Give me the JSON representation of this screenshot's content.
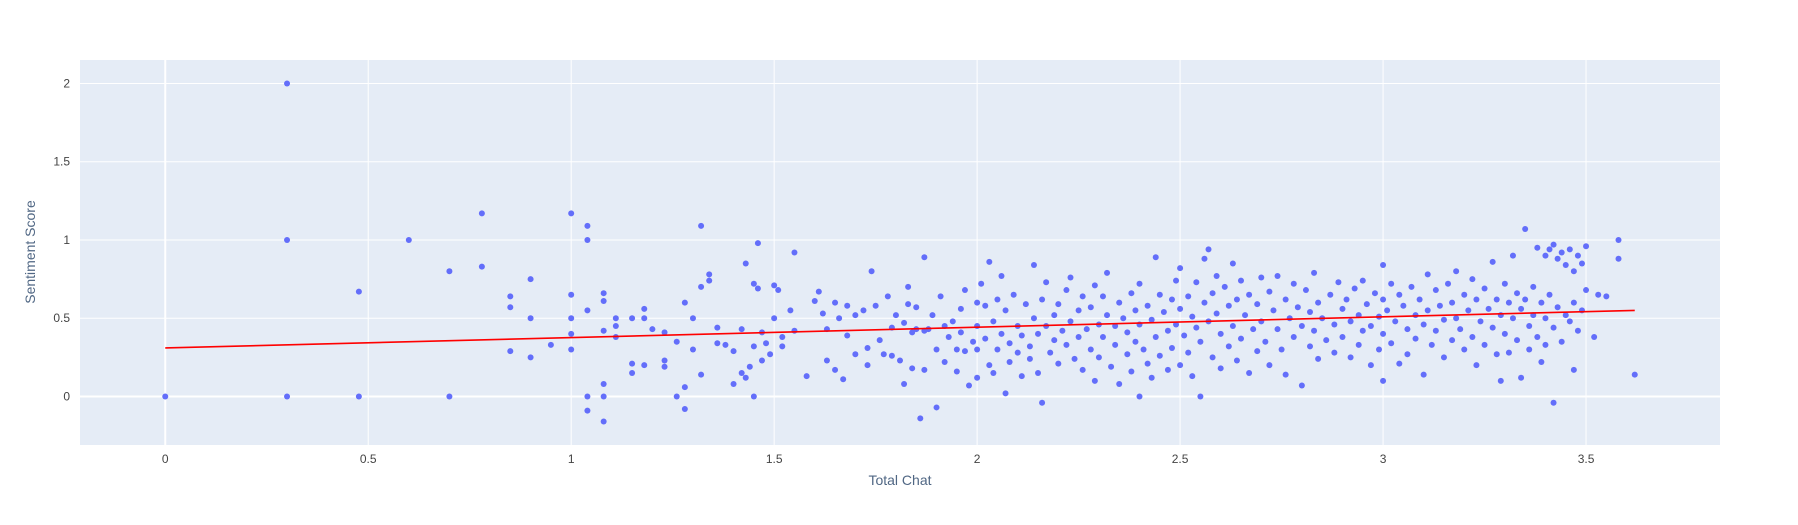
{
  "chart_data": {
    "type": "scatter",
    "xlabel": "Total Chat",
    "ylabel": "Sentiment Score",
    "xlim": [
      -0.21,
      3.83
    ],
    "ylim": [
      -0.31,
      2.15
    ],
    "x_ticks": [
      0,
      0.5,
      1,
      1.5,
      2,
      2.5,
      3,
      3.5
    ],
    "x_tick_labels": [
      "0",
      "0.5",
      "1",
      "1.5",
      "2",
      "2.5",
      "3",
      "3.5"
    ],
    "y_ticks": [
      0,
      0.5,
      1,
      1.5,
      2
    ],
    "y_tick_labels": [
      "0",
      "0.5",
      "1",
      "1.5",
      "2"
    ],
    "grid": true,
    "legend": "none",
    "colors": {
      "points": "#636efa",
      "trendline": "#ff0000",
      "plot_bg": "#e5ecf6",
      "grid": "#ffffff"
    },
    "trendline": {
      "x": [
        0,
        3.62
      ],
      "y": [
        0.31,
        0.55
      ]
    },
    "points": [
      [
        0,
        0
      ],
      [
        0.3,
        2.0
      ],
      [
        0.3,
        1.0
      ],
      [
        0.3,
        0
      ],
      [
        0.477,
        0.67
      ],
      [
        0.477,
        0
      ],
      [
        0.6,
        1.0
      ],
      [
        0.7,
        0.8
      ],
      [
        0.7,
        0
      ],
      [
        0.78,
        1.17
      ],
      [
        0.78,
        0.83
      ],
      [
        0.85,
        0.64
      ],
      [
        0.85,
        0.57
      ],
      [
        0.85,
        0.29
      ],
      [
        0.9,
        0.75
      ],
      [
        0.9,
        0.5
      ],
      [
        0.9,
        0.25
      ],
      [
        0.95,
        0.33
      ],
      [
        1.0,
        1.17
      ],
      [
        1.0,
        0.65
      ],
      [
        1.0,
        0.5
      ],
      [
        1.0,
        0.4
      ],
      [
        1.0,
        0.3
      ],
      [
        1.04,
        1.09
      ],
      [
        1.04,
        1.0
      ],
      [
        1.04,
        0.55
      ],
      [
        1.04,
        0
      ],
      [
        1.04,
        -0.09
      ],
      [
        1.08,
        0.66
      ],
      [
        1.08,
        0.61
      ],
      [
        1.08,
        0.42
      ],
      [
        1.08,
        0.08
      ],
      [
        1.08,
        0
      ],
      [
        1.08,
        -0.16
      ],
      [
        1.11,
        0.5
      ],
      [
        1.11,
        0.45
      ],
      [
        1.11,
        0.38
      ],
      [
        1.15,
        0.5
      ],
      [
        1.15,
        0.21
      ],
      [
        1.15,
        0.15
      ],
      [
        1.18,
        0.56
      ],
      [
        1.18,
        0.5
      ],
      [
        1.18,
        0.2
      ],
      [
        1.2,
        0.43
      ],
      [
        1.23,
        0.41
      ],
      [
        1.23,
        0.23
      ],
      [
        1.23,
        0.19
      ],
      [
        1.26,
        0.35
      ],
      [
        1.26,
        0.0
      ],
      [
        1.28,
        0.6
      ],
      [
        1.28,
        0.06
      ],
      [
        1.28,
        -0.08
      ],
      [
        1.3,
        0.5
      ],
      [
        1.3,
        0.3
      ],
      [
        1.32,
        1.09
      ],
      [
        1.32,
        0.7
      ],
      [
        1.32,
        0.14
      ],
      [
        1.34,
        0.78
      ],
      [
        1.34,
        0.74
      ],
      [
        1.36,
        0.44
      ],
      [
        1.36,
        0.34
      ],
      [
        1.38,
        0.33
      ],
      [
        1.4,
        0.29
      ],
      [
        1.4,
        0.08
      ],
      [
        1.42,
        0.43
      ],
      [
        1.42,
        0.15
      ],
      [
        1.43,
        0.85
      ],
      [
        1.43,
        0.12
      ],
      [
        1.44,
        0.19
      ],
      [
        1.45,
        0.72
      ],
      [
        1.45,
        0.32
      ],
      [
        1.45,
        0.0
      ],
      [
        1.46,
        0.98
      ],
      [
        1.46,
        0.69
      ],
      [
        1.47,
        0.41
      ],
      [
        1.47,
        0.23
      ],
      [
        1.48,
        0.34
      ],
      [
        1.49,
        0.27
      ],
      [
        1.5,
        0.71
      ],
      [
        1.5,
        0.5
      ],
      [
        1.51,
        0.68
      ],
      [
        1.52,
        0.38
      ],
      [
        1.52,
        0.32
      ],
      [
        1.54,
        0.55
      ],
      [
        1.55,
        0.92
      ],
      [
        1.55,
        0.42
      ],
      [
        1.58,
        0.13
      ],
      [
        1.6,
        0.61
      ],
      [
        1.61,
        0.67
      ],
      [
        1.62,
        0.53
      ],
      [
        1.63,
        0.43
      ],
      [
        1.63,
        0.23
      ],
      [
        1.65,
        0.6
      ],
      [
        1.65,
        0.17
      ],
      [
        1.66,
        0.5
      ],
      [
        1.67,
        0.11
      ],
      [
        1.68,
        0.58
      ],
      [
        1.68,
        0.39
      ],
      [
        1.7,
        0.52
      ],
      [
        1.7,
        0.27
      ],
      [
        1.72,
        0.55
      ],
      [
        1.73,
        0.31
      ],
      [
        1.73,
        0.2
      ],
      [
        1.74,
        0.8
      ],
      [
        1.75,
        0.58
      ],
      [
        1.76,
        0.36
      ],
      [
        1.77,
        0.27
      ],
      [
        1.78,
        0.64
      ],
      [
        1.79,
        0.44
      ],
      [
        1.79,
        0.26
      ],
      [
        1.8,
        0.52
      ],
      [
        1.81,
        0.23
      ],
      [
        1.82,
        0.47
      ],
      [
        1.82,
        0.08
      ],
      [
        1.83,
        0.7
      ],
      [
        1.83,
        0.59
      ],
      [
        1.84,
        0.41
      ],
      [
        1.84,
        0.18
      ],
      [
        1.85,
        0.57
      ],
      [
        1.85,
        0.43
      ],
      [
        1.86,
        -0.14
      ],
      [
        1.87,
        0.89
      ],
      [
        1.87,
        0.42
      ],
      [
        1.87,
        0.17
      ],
      [
        1.88,
        0.43
      ],
      [
        1.89,
        0.52
      ],
      [
        1.9,
        0.3
      ],
      [
        1.9,
        -0.07
      ],
      [
        1.91,
        0.64
      ],
      [
        1.92,
        0.45
      ],
      [
        1.92,
        0.22
      ],
      [
        1.93,
        0.38
      ],
      [
        1.94,
        0.48
      ],
      [
        1.95,
        0.3
      ],
      [
        1.95,
        0.16
      ],
      [
        1.96,
        0.56
      ],
      [
        1.96,
        0.41
      ],
      [
        1.97,
        0.68
      ],
      [
        1.97,
        0.29
      ],
      [
        1.98,
        0.07
      ],
      [
        1.99,
        0.35
      ],
      [
        2.0,
        0.6
      ],
      [
        2.0,
        0.45
      ],
      [
        2.0,
        0.3
      ],
      [
        2.0,
        0.12
      ],
      [
        2.01,
        0.72
      ],
      [
        2.02,
        0.58
      ],
      [
        2.02,
        0.37
      ],
      [
        2.03,
        0.86
      ],
      [
        2.03,
        0.2
      ],
      [
        2.04,
        0.48
      ],
      [
        2.04,
        0.15
      ],
      [
        2.05,
        0.62
      ],
      [
        2.05,
        0.3
      ],
      [
        2.06,
        0.77
      ],
      [
        2.06,
        0.4
      ],
      [
        2.07,
        0.55
      ],
      [
        2.07,
        0.02
      ],
      [
        2.08,
        0.34
      ],
      [
        2.08,
        0.22
      ],
      [
        2.09,
        0.65
      ],
      [
        2.1,
        0.45
      ],
      [
        2.1,
        0.28
      ],
      [
        2.11,
        0.39
      ],
      [
        2.11,
        0.13
      ],
      [
        2.12,
        0.59
      ],
      [
        2.13,
        0.32
      ],
      [
        2.13,
        0.24
      ],
      [
        2.14,
        0.5
      ],
      [
        2.14,
        0.84
      ],
      [
        2.15,
        0.4
      ],
      [
        2.15,
        0.15
      ],
      [
        2.16,
        0.62
      ],
      [
        2.16,
        -0.04
      ],
      [
        2.17,
        0.73
      ],
      [
        2.17,
        0.45
      ],
      [
        2.18,
        0.28
      ],
      [
        2.19,
        0.52
      ],
      [
        2.19,
        0.36
      ],
      [
        2.2,
        0.59
      ],
      [
        2.2,
        0.21
      ],
      [
        2.21,
        0.42
      ],
      [
        2.22,
        0.68
      ],
      [
        2.22,
        0.33
      ],
      [
        2.23,
        0.76
      ],
      [
        2.23,
        0.48
      ],
      [
        2.24,
        0.24
      ],
      [
        2.25,
        0.55
      ],
      [
        2.25,
        0.38
      ],
      [
        2.26,
        0.64
      ],
      [
        2.26,
        0.17
      ],
      [
        2.27,
        0.43
      ],
      [
        2.28,
        0.57
      ],
      [
        2.28,
        0.3
      ],
      [
        2.29,
        0.71
      ],
      [
        2.29,
        0.1
      ],
      [
        2.3,
        0.46
      ],
      [
        2.3,
        0.25
      ],
      [
        2.31,
        0.64
      ],
      [
        2.31,
        0.38
      ],
      [
        2.32,
        0.79
      ],
      [
        2.32,
        0.52
      ],
      [
        2.33,
        0.19
      ],
      [
        2.34,
        0.45
      ],
      [
        2.34,
        0.33
      ],
      [
        2.35,
        0.6
      ],
      [
        2.35,
        0.08
      ],
      [
        2.36,
        0.5
      ],
      [
        2.37,
        0.41
      ],
      [
        2.37,
        0.27
      ],
      [
        2.38,
        0.66
      ],
      [
        2.38,
        0.16
      ],
      [
        2.39,
        0.55
      ],
      [
        2.39,
        0.35
      ],
      [
        2.4,
        0.72
      ],
      [
        2.4,
        0.46
      ],
      [
        2.4,
        0.0
      ],
      [
        2.41,
        0.3
      ],
      [
        2.42,
        0.58
      ],
      [
        2.42,
        0.21
      ],
      [
        2.43,
        0.49
      ],
      [
        2.43,
        0.12
      ],
      [
        2.44,
        0.89
      ],
      [
        2.44,
        0.38
      ],
      [
        2.45,
        0.65
      ],
      [
        2.45,
        0.26
      ],
      [
        2.46,
        0.54
      ],
      [
        2.47,
        0.42
      ],
      [
        2.47,
        0.17
      ],
      [
        2.48,
        0.62
      ],
      [
        2.48,
        0.31
      ],
      [
        2.49,
        0.74
      ],
      [
        2.49,
        0.46
      ],
      [
        2.5,
        0.82
      ],
      [
        2.5,
        0.56
      ],
      [
        2.5,
        0.2
      ],
      [
        2.51,
        0.39
      ],
      [
        2.52,
        0.64
      ],
      [
        2.52,
        0.28
      ],
      [
        2.53,
        0.51
      ],
      [
        2.53,
        0.13
      ],
      [
        2.54,
        0.73
      ],
      [
        2.54,
        0.44
      ],
      [
        2.55,
        0.35
      ],
      [
        2.55,
        0.0
      ],
      [
        2.56,
        0.6
      ],
      [
        2.56,
        0.88
      ],
      [
        2.57,
        0.94
      ],
      [
        2.57,
        0.48
      ],
      [
        2.58,
        0.66
      ],
      [
        2.58,
        0.25
      ],
      [
        2.59,
        0.77
      ],
      [
        2.59,
        0.53
      ],
      [
        2.6,
        0.4
      ],
      [
        2.6,
        0.18
      ],
      [
        2.61,
        0.7
      ],
      [
        2.62,
        0.58
      ],
      [
        2.62,
        0.32
      ],
      [
        2.63,
        0.85
      ],
      [
        2.63,
        0.45
      ],
      [
        2.64,
        0.62
      ],
      [
        2.64,
        0.23
      ],
      [
        2.65,
        0.74
      ],
      [
        2.65,
        0.37
      ],
      [
        2.66,
        0.52
      ],
      [
        2.67,
        0.65
      ],
      [
        2.67,
        0.15
      ],
      [
        2.68,
        0.43
      ],
      [
        2.69,
        0.59
      ],
      [
        2.69,
        0.29
      ],
      [
        2.7,
        0.76
      ],
      [
        2.7,
        0.48
      ],
      [
        2.71,
        0.35
      ],
      [
        2.72,
        0.67
      ],
      [
        2.72,
        0.2
      ],
      [
        2.73,
        0.55
      ],
      [
        2.74,
        0.43
      ],
      [
        2.74,
        0.77
      ],
      [
        2.75,
        0.3
      ],
      [
        2.76,
        0.62
      ],
      [
        2.76,
        0.14
      ],
      [
        2.77,
        0.5
      ],
      [
        2.78,
        0.72
      ],
      [
        2.78,
        0.38
      ],
      [
        2.79,
        0.57
      ],
      [
        2.8,
        0.45
      ],
      [
        2.8,
        0.07
      ],
      [
        2.81,
        0.68
      ],
      [
        2.82,
        0.32
      ],
      [
        2.82,
        0.54
      ],
      [
        2.83,
        0.79
      ],
      [
        2.83,
        0.42
      ],
      [
        2.84,
        0.6
      ],
      [
        2.84,
        0.24
      ],
      [
        2.85,
        0.5
      ],
      [
        2.86,
        0.36
      ],
      [
        2.87,
        0.65
      ],
      [
        2.88,
        0.46
      ],
      [
        2.88,
        0.28
      ],
      [
        2.89,
        0.73
      ],
      [
        2.9,
        0.56
      ],
      [
        2.9,
        0.38
      ],
      [
        2.91,
        0.62
      ],
      [
        2.92,
        0.48
      ],
      [
        2.92,
        0.25
      ],
      [
        2.93,
        0.69
      ],
      [
        2.94,
        0.52
      ],
      [
        2.94,
        0.33
      ],
      [
        2.95,
        0.74
      ],
      [
        2.95,
        0.42
      ],
      [
        2.96,
        0.59
      ],
      [
        2.97,
        0.45
      ],
      [
        2.97,
        0.2
      ],
      [
        2.98,
        0.66
      ],
      [
        2.99,
        0.51
      ],
      [
        2.99,
        0.3
      ],
      [
        3.0,
        0.84
      ],
      [
        3.0,
        0.62
      ],
      [
        3.0,
        0.4
      ],
      [
        3.0,
        0.1
      ],
      [
        3.01,
        0.55
      ],
      [
        3.02,
        0.72
      ],
      [
        3.02,
        0.34
      ],
      [
        3.03,
        0.48
      ],
      [
        3.04,
        0.65
      ],
      [
        3.04,
        0.21
      ],
      [
        3.05,
        0.58
      ],
      [
        3.06,
        0.43
      ],
      [
        3.06,
        0.27
      ],
      [
        3.07,
        0.7
      ],
      [
        3.08,
        0.52
      ],
      [
        3.08,
        0.37
      ],
      [
        3.09,
        0.62
      ],
      [
        3.1,
        0.46
      ],
      [
        3.1,
        0.14
      ],
      [
        3.11,
        0.78
      ],
      [
        3.11,
        0.55
      ],
      [
        3.12,
        0.33
      ],
      [
        3.13,
        0.68
      ],
      [
        3.13,
        0.42
      ],
      [
        3.14,
        0.58
      ],
      [
        3.15,
        0.49
      ],
      [
        3.15,
        0.25
      ],
      [
        3.16,
        0.72
      ],
      [
        3.17,
        0.6
      ],
      [
        3.17,
        0.36
      ],
      [
        3.18,
        0.8
      ],
      [
        3.18,
        0.5
      ],
      [
        3.19,
        0.43
      ],
      [
        3.2,
        0.65
      ],
      [
        3.2,
        0.3
      ],
      [
        3.21,
        0.55
      ],
      [
        3.22,
        0.75
      ],
      [
        3.22,
        0.38
      ],
      [
        3.23,
        0.62
      ],
      [
        3.23,
        0.2
      ],
      [
        3.24,
        0.48
      ],
      [
        3.25,
        0.69
      ],
      [
        3.25,
        0.33
      ],
      [
        3.26,
        0.56
      ],
      [
        3.27,
        0.86
      ],
      [
        3.27,
        0.44
      ],
      [
        3.28,
        0.62
      ],
      [
        3.28,
        0.27
      ],
      [
        3.29,
        0.52
      ],
      [
        3.29,
        0.1
      ],
      [
        3.3,
        0.72
      ],
      [
        3.3,
        0.4
      ],
      [
        3.31,
        0.6
      ],
      [
        3.31,
        0.28
      ],
      [
        3.32,
        0.9
      ],
      [
        3.32,
        0.5
      ],
      [
        3.33,
        0.66
      ],
      [
        3.33,
        0.36
      ],
      [
        3.34,
        0.56
      ],
      [
        3.34,
        0.12
      ],
      [
        3.35,
        1.07
      ],
      [
        3.35,
        0.62
      ],
      [
        3.36,
        0.45
      ],
      [
        3.36,
        0.3
      ],
      [
        3.37,
        0.7
      ],
      [
        3.37,
        0.52
      ],
      [
        3.38,
        0.95
      ],
      [
        3.38,
        0.38
      ],
      [
        3.39,
        0.6
      ],
      [
        3.39,
        0.22
      ],
      [
        3.4,
        0.9
      ],
      [
        3.4,
        0.5
      ],
      [
        3.4,
        0.33
      ],
      [
        3.41,
        0.94
      ],
      [
        3.41,
        0.65
      ],
      [
        3.42,
        0.97
      ],
      [
        3.42,
        0.44
      ],
      [
        3.42,
        -0.04
      ],
      [
        3.43,
        0.88
      ],
      [
        3.43,
        0.57
      ],
      [
        3.44,
        0.92
      ],
      [
        3.44,
        0.35
      ],
      [
        3.45,
        0.84
      ],
      [
        3.45,
        0.52
      ],
      [
        3.46,
        0.94
      ],
      [
        3.46,
        0.48
      ],
      [
        3.47,
        0.8
      ],
      [
        3.47,
        0.6
      ],
      [
        3.47,
        0.17
      ],
      [
        3.48,
        0.9
      ],
      [
        3.48,
        0.42
      ],
      [
        3.49,
        0.85
      ],
      [
        3.49,
        0.55
      ],
      [
        3.5,
        0.96
      ],
      [
        3.5,
        0.68
      ],
      [
        3.52,
        0.38
      ],
      [
        3.53,
        0.65
      ],
      [
        3.55,
        0.64
      ],
      [
        3.58,
        1.0
      ],
      [
        3.58,
        0.88
      ],
      [
        3.62,
        0.14
      ]
    ]
  }
}
